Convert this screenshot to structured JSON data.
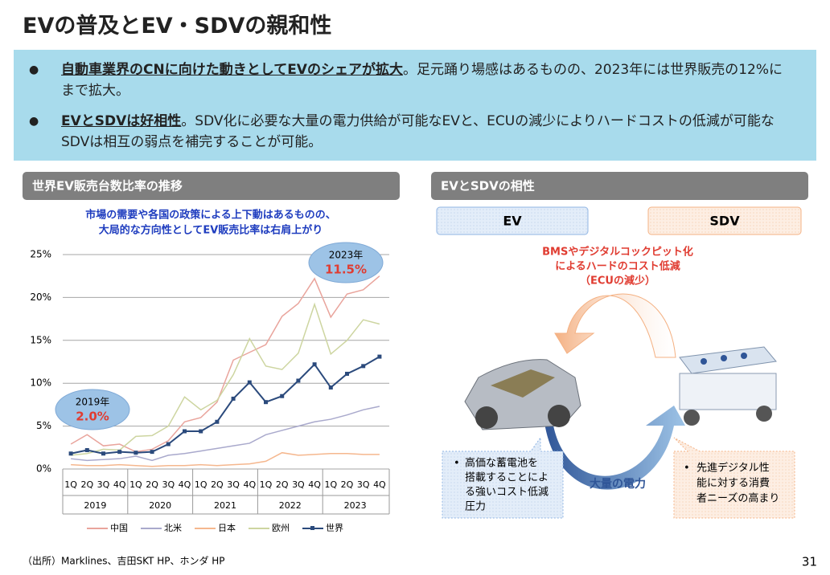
{
  "title": "EVの普及とEV・SDVの親和性",
  "bullets": [
    [
      {
        "text": "自動車業界のCNに向けた動きとしてEVのシェアが拡大",
        "bold": true
      },
      {
        "text": "。足元踊り場感はあるものの、2023年には世界販売の12%にまで拡大。",
        "bold": false
      }
    ],
    [
      {
        "text": "EVとSDVは好相性",
        "bold": true
      },
      {
        "text": "。SDV化に必要な大量の電力供給が可能なEVと、ECUの減少によりハードコストの低減が可能なSDVは相互の弱点を補完することが可能。",
        "bold": false
      }
    ]
  ],
  "left_header": "世界EV販売台数比率の推移",
  "right_header": "EVとSDVの相性",
  "chart_data": {
    "type": "line",
    "subtitle": [
      "市場の需要や各国の政策による上下動はあるものの、",
      "大局的な方向性としてEV販売比率は右肩上がり"
    ],
    "categories": [
      "1Q",
      "2Q",
      "3Q",
      "4Q",
      "1Q",
      "2Q",
      "3Q",
      "4Q",
      "1Q",
      "2Q",
      "3Q",
      "4Q",
      "1Q",
      "2Q",
      "3Q",
      "4Q",
      "1Q",
      "2Q",
      "3Q",
      "4Q"
    ],
    "year_groups": [
      "2019",
      "2020",
      "2021",
      "2022",
      "2023"
    ],
    "ylim": [
      0,
      25
    ],
    "yticks": [
      {
        "value": 0,
        "label": "0%"
      },
      {
        "value": 5,
        "label": "5%"
      },
      {
        "value": 10,
        "label": "10%"
      },
      {
        "value": 15,
        "label": "15%"
      },
      {
        "value": 20,
        "label": "20%"
      },
      {
        "value": 25,
        "label": "25%"
      }
    ],
    "grid": true,
    "series": [
      {
        "name": "中国",
        "color": "#e9a49c",
        "marker": false,
        "values": [
          2.9,
          4.0,
          2.7,
          2.9,
          2.0,
          2.3,
          3.3,
          5.5,
          6.0,
          7.8,
          12.7,
          13.6,
          14.5,
          17.8,
          19.3,
          22.2,
          17.7,
          20.4,
          20.9,
          22.5
        ]
      },
      {
        "name": "北米",
        "color": "#a9a9cc",
        "marker": false,
        "values": [
          1.2,
          1.0,
          1.1,
          1.2,
          1.5,
          1.0,
          1.6,
          1.8,
          2.1,
          2.4,
          2.7,
          3.0,
          4.0,
          4.5,
          5.0,
          5.5,
          5.8,
          6.3,
          6.9,
          7.3
        ]
      },
      {
        "name": "日本",
        "color": "#f5b78e",
        "marker": false,
        "values": [
          0.5,
          0.4,
          0.4,
          0.5,
          0.4,
          0.3,
          0.4,
          0.4,
          0.5,
          0.4,
          0.5,
          0.6,
          0.9,
          1.9,
          1.6,
          1.7,
          1.8,
          1.8,
          1.7,
          1.7
        ]
      },
      {
        "name": "欧州",
        "color": "#cdd5a0",
        "marker": false,
        "values": [
          1.6,
          1.8,
          2.3,
          2.2,
          3.8,
          3.9,
          5.0,
          8.4,
          6.9,
          8.0,
          11.0,
          15.2,
          12.0,
          11.6,
          13.5,
          19.2,
          13.4,
          15.0,
          17.4,
          16.9
        ]
      },
      {
        "name": "世界",
        "color": "#2b4a7c",
        "marker": true,
        "values": [
          1.8,
          2.2,
          1.8,
          2.0,
          1.9,
          2.0,
          2.9,
          4.4,
          4.4,
          5.5,
          8.2,
          10.1,
          7.8,
          8.5,
          10.3,
          12.2,
          9.5,
          11.1,
          12.0,
          13.1
        ]
      }
    ],
    "annotations": [
      {
        "label": "2019年",
        "value_label": "2.0%"
      },
      {
        "label": "2023年",
        "value_label": "11.5%"
      }
    ]
  },
  "diagram": {
    "ev": "EV",
    "sdv": "SDV",
    "top_label": [
      "BMSやデジタルコックピット化",
      "によるハードのコスト低減",
      "（ECUの減少）"
    ],
    "bottom_label": "大量の電力",
    "ev_note": [
      "高価な蓄電池を",
      "搭載することによ",
      "る強いコスト低減",
      "圧力"
    ],
    "sdv_note": [
      "先進デジタル性",
      "能に対する消費",
      "者ニーズの高まり"
    ]
  },
  "footer": "（出所）Marklines、吉田SKT HP、ホンダ HP",
  "page_number": "31"
}
